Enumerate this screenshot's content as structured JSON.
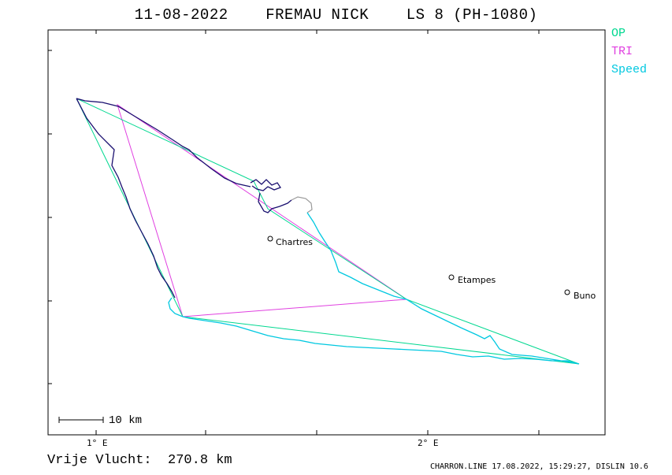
{
  "header": {
    "title": "11-08-2022    FREMAU NICK    LS 8 (PH-1080)"
  },
  "legend": [
    {
      "label": "OP",
      "color": "#00d890"
    },
    {
      "label": "TRI",
      "color": "#e040e0"
    },
    {
      "label": "Speed",
      "color": "#00c8e0"
    }
  ],
  "places": [
    {
      "name": "Chartres"
    },
    {
      "name": "Etampes"
    },
    {
      "name": "Buno"
    }
  ],
  "axis": {
    "lon_labels": [
      "1° E",
      "2° E"
    ]
  },
  "scale_bar": {
    "label": "10 km"
  },
  "summary": {
    "distance_text": "Vrije Vlucht:  270.8 km"
  },
  "footer": {
    "text": "CHARRON.LINE 17.08.2022, 15:29:27, DISLIN 10.6"
  },
  "colors": {
    "track_dark": "#1a1070",
    "track_gray": "#9a9a9a"
  }
}
